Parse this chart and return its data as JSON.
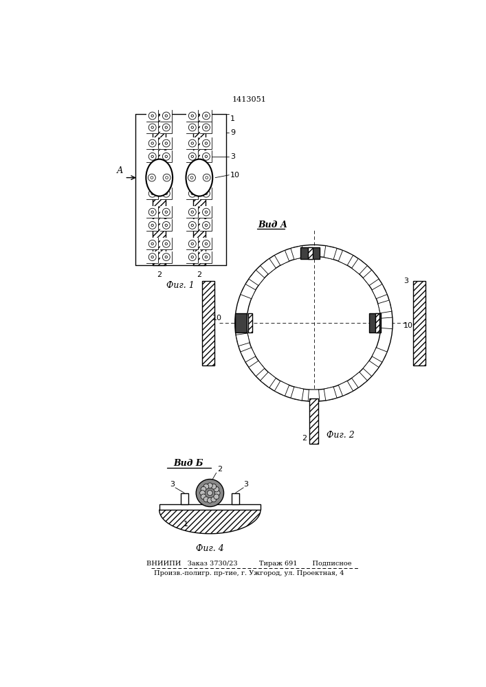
{
  "patent_number": "1413051",
  "bg_color": "#ffffff",
  "line_color": "#000000",
  "footer": {
    "line1": "ВНИИПИ   Заказ 3730/23          Тираж 691       Подписное",
    "line2": "Произв.-полигр. пр-тие, г. Ужгород, ул. Проектная, 4"
  }
}
